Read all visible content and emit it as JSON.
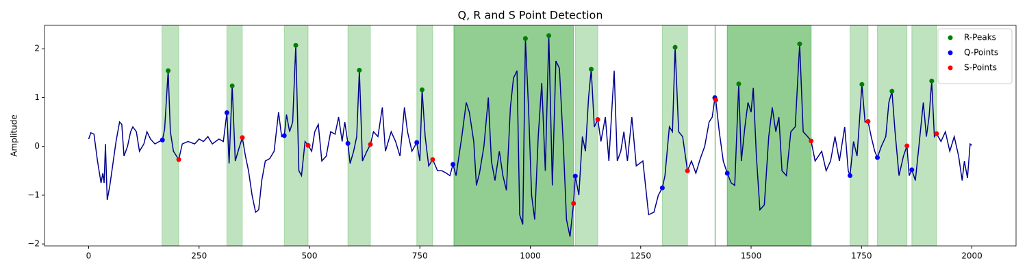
{
  "chart_data": {
    "type": "line",
    "title": "Q, R and S Point Detection",
    "y_label": "Amplitude",
    "xlim": [
      -100,
      2100
    ],
    "ylim": [
      -2.04,
      2.48
    ],
    "xticks": [
      0,
      250,
      500,
      750,
      1000,
      1250,
      1500,
      1750,
      2000
    ],
    "yticks": [
      {
        "value": -2,
        "label": "−2"
      },
      {
        "value": -1,
        "label": "−1"
      },
      0,
      1,
      2
    ],
    "legend": "upper right",
    "span_color": "#2ca02c",
    "spans": [
      [
        166,
        204
      ],
      [
        313,
        348
      ],
      [
        443,
        497
      ],
      [
        587,
        638
      ],
      [
        743,
        779
      ],
      [
        827,
        1098
      ],
      [
        827,
        1098
      ],
      [
        1102,
        1153
      ],
      [
        1299,
        1356
      ],
      [
        1418,
        1420
      ],
      [
        1446,
        1636
      ],
      [
        1446,
        1636
      ],
      [
        1724,
        1765
      ],
      [
        1786,
        1853
      ],
      [
        1864,
        1920
      ]
    ],
    "signal": {
      "color": "#00008b",
      "x": [
        0,
        5,
        12,
        20,
        28,
        32,
        35,
        38,
        42,
        48,
        55,
        62,
        70,
        75,
        80,
        88,
        95,
        100,
        108,
        115,
        125,
        132,
        140,
        150,
        160,
        167,
        172,
        180,
        185,
        192,
        204,
        212,
        225,
        240,
        250,
        260,
        270,
        280,
        295,
        305,
        313,
        318,
        325,
        332,
        340,
        348,
        355,
        362,
        370,
        378,
        385,
        392,
        400,
        410,
        420,
        430,
        437,
        443,
        448,
        455,
        462,
        469,
        476,
        482,
        490,
        497,
        505,
        512,
        520,
        528,
        538,
        548,
        558,
        566,
        574,
        580,
        587,
        592,
        600,
        607,
        613,
        620,
        630,
        638,
        645,
        655,
        665,
        672,
        685,
        695,
        705,
        715,
        722,
        732,
        743,
        750,
        755,
        762,
        770,
        779,
        790,
        800,
        810,
        818,
        825,
        832,
        845,
        855,
        862,
        872,
        878,
        885,
        895,
        905,
        912,
        920,
        930,
        938,
        946,
        955,
        962,
        970,
        976,
        983,
        989,
        996,
        1003,
        1010,
        1018,
        1026,
        1034,
        1042,
        1050,
        1058,
        1066,
        1075,
        1082,
        1090,
        1098,
        1102,
        1110,
        1118,
        1125,
        1132,
        1138,
        1145,
        1153,
        1160,
        1170,
        1178,
        1185,
        1190,
        1197,
        1205,
        1212,
        1220,
        1230,
        1240,
        1255,
        1268,
        1280,
        1290,
        1299,
        1305,
        1315,
        1322,
        1328,
        1336,
        1345,
        1356,
        1365,
        1375,
        1385,
        1395,
        1405,
        1412,
        1418,
        1420,
        1428,
        1437,
        1446,
        1455,
        1463,
        1472,
        1478,
        1486,
        1493,
        1500,
        1505,
        1512,
        1520,
        1530,
        1540,
        1548,
        1556,
        1563,
        1570,
        1580,
        1590,
        1600,
        1610,
        1618,
        1628,
        1636,
        1645,
        1660,
        1670,
        1680,
        1690,
        1700,
        1712,
        1720,
        1724,
        1732,
        1740,
        1751,
        1758,
        1765,
        1772,
        1780,
        1786,
        1795,
        1805,
        1812,
        1819,
        1826,
        1835,
        1845,
        1853,
        1858,
        1864,
        1872,
        1880,
        1890,
        1897,
        1903,
        1909,
        1915,
        1920,
        1930,
        1940,
        1950,
        1960,
        1970,
        1978,
        1983,
        1990,
        1996,
        2000
      ],
      "values": [
        0.15,
        0.28,
        0.25,
        -0.3,
        -0.75,
        -0.55,
        -0.75,
        0.05,
        -1.1,
        -0.8,
        -0.35,
        0.1,
        0.5,
        0.45,
        -0.2,
        0.0,
        0.3,
        0.4,
        0.3,
        -0.1,
        0.05,
        0.3,
        0.15,
        0.05,
        0.1,
        0.13,
        0.35,
        1.55,
        0.3,
        -0.1,
        -0.27,
        0.05,
        0.1,
        0.05,
        0.15,
        0.1,
        0.2,
        0.05,
        0.15,
        0.1,
        0.69,
        -0.35,
        1.24,
        -0.3,
        -0.05,
        0.18,
        -0.2,
        -0.5,
        -1.0,
        -1.35,
        -1.3,
        -0.7,
        -0.3,
        -0.25,
        -0.1,
        0.7,
        0.2,
        0.22,
        0.65,
        0.3,
        0.5,
        2.07,
        -0.5,
        -0.6,
        0.1,
        0.02,
        -0.1,
        0.3,
        0.45,
        -0.3,
        -0.2,
        0.3,
        0.25,
        0.6,
        0.1,
        0.5,
        0.06,
        -0.35,
        -0.1,
        0.2,
        1.56,
        -0.3,
        -0.1,
        0.04,
        0.3,
        0.2,
        0.8,
        -0.1,
        0.3,
        0.1,
        -0.2,
        0.8,
        0.3,
        -0.1,
        0.08,
        -0.3,
        1.16,
        0.2,
        -0.4,
        -0.27,
        -0.5,
        -0.5,
        -0.55,
        -0.6,
        -0.37,
        -0.6,
        0.2,
        0.9,
        0.7,
        0.1,
        -0.8,
        -0.55,
        0.0,
        1.0,
        -0.3,
        -0.7,
        -0.1,
        -0.6,
        -0.9,
        0.8,
        1.4,
        1.55,
        -1.4,
        -1.6,
        2.21,
        0.8,
        -1.0,
        -1.5,
        0.2,
        1.3,
        -0.5,
        2.27,
        -0.8,
        1.75,
        1.6,
        0.0,
        -1.5,
        -1.85,
        -1.17,
        -0.61,
        -1.0,
        0.2,
        -0.1,
        1.0,
        1.58,
        0.4,
        0.55,
        0.1,
        0.6,
        -0.3,
        0.8,
        1.55,
        -0.3,
        -0.1,
        0.3,
        -0.3,
        0.6,
        -0.4,
        -0.3,
        -1.4,
        -1.35,
        -1.0,
        -0.85,
        -0.6,
        0.4,
        0.3,
        2.03,
        0.3,
        0.2,
        -0.5,
        -0.3,
        -0.55,
        -0.25,
        0.0,
        0.5,
        0.6,
        0.99,
        0.95,
        0.3,
        -0.3,
        -0.55,
        -0.75,
        -0.8,
        1.28,
        -0.3,
        0.4,
        0.9,
        0.7,
        1.2,
        -0.2,
        -1.3,
        -1.2,
        0.2,
        0.8,
        0.3,
        0.6,
        -0.5,
        -0.6,
        0.3,
        0.4,
        2.1,
        0.3,
        0.2,
        0.11,
        -0.3,
        -0.1,
        -0.5,
        -0.3,
        0.2,
        -0.3,
        0.4,
        -0.5,
        -0.6,
        0.1,
        -0.2,
        1.27,
        0.5,
        0.51,
        0.2,
        -0.1,
        -0.23,
        0.0,
        0.2,
        0.9,
        1.13,
        0.3,
        -0.6,
        -0.2,
        0.01,
        -0.6,
        -0.48,
        -0.7,
        0.0,
        0.9,
        0.2,
        0.6,
        1.34,
        0.2,
        0.26,
        0.1,
        0.3,
        -0.1,
        0.2,
        -0.2,
        -0.7,
        -0.3,
        -0.65,
        0.05,
        0.02
      ]
    },
    "series": [
      {
        "name": "R-Peaks",
        "color": "#008000",
        "x": [
          180,
          325,
          469,
          613,
          755,
          989,
          1042,
          1138,
          1328,
          1418,
          1472,
          1610,
          1751,
          1819,
          1909
        ],
        "values": [
          1.55,
          1.24,
          2.07,
          1.56,
          1.16,
          2.21,
          2.27,
          1.58,
          2.03,
          1.0,
          1.28,
          2.1,
          1.27,
          1.13,
          1.34
        ]
      },
      {
        "name": "Q-Points",
        "color": "#0000ff",
        "x": [
          167,
          313,
          443,
          587,
          743,
          825,
          1102,
          1299,
          1418,
          1446,
          1724,
          1786,
          1864
        ],
        "values": [
          0.13,
          0.69,
          0.22,
          0.06,
          0.08,
          -0.37,
          -0.61,
          -0.85,
          0.99,
          -0.55,
          -0.6,
          -0.23,
          -0.48
        ]
      },
      {
        "name": "S-Points",
        "color": "#ff0000",
        "x": [
          204,
          348,
          497,
          638,
          779,
          1098,
          1153,
          1356,
          1420,
          1636,
          1765,
          1853,
          1920
        ],
        "values": [
          -0.27,
          0.18,
          0.02,
          0.04,
          -0.27,
          -1.17,
          0.55,
          -0.5,
          0.95,
          0.11,
          0.51,
          0.01,
          0.26
        ]
      }
    ]
  }
}
